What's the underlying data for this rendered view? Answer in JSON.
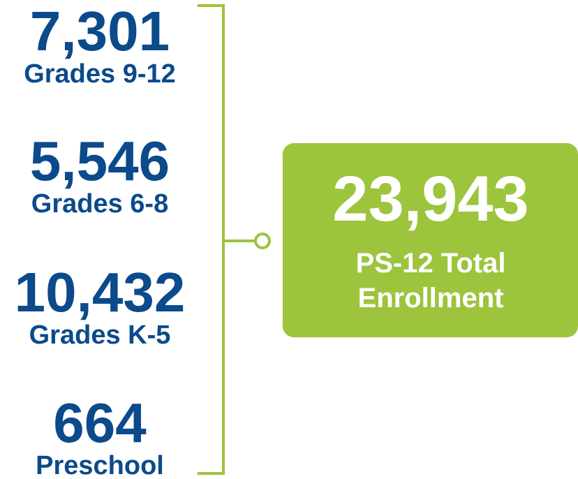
{
  "items": [
    {
      "value": "7,301",
      "label": "Grades 9-12"
    },
    {
      "value": "5,546",
      "label": "Grades 6-8"
    },
    {
      "value": "10,432",
      "label": "Grades K-5"
    },
    {
      "value": "664",
      "label": "Preschool"
    }
  ],
  "total": {
    "value": "23,943",
    "label_lines": [
      "PS-12 Total",
      "Enrollment"
    ]
  }
}
